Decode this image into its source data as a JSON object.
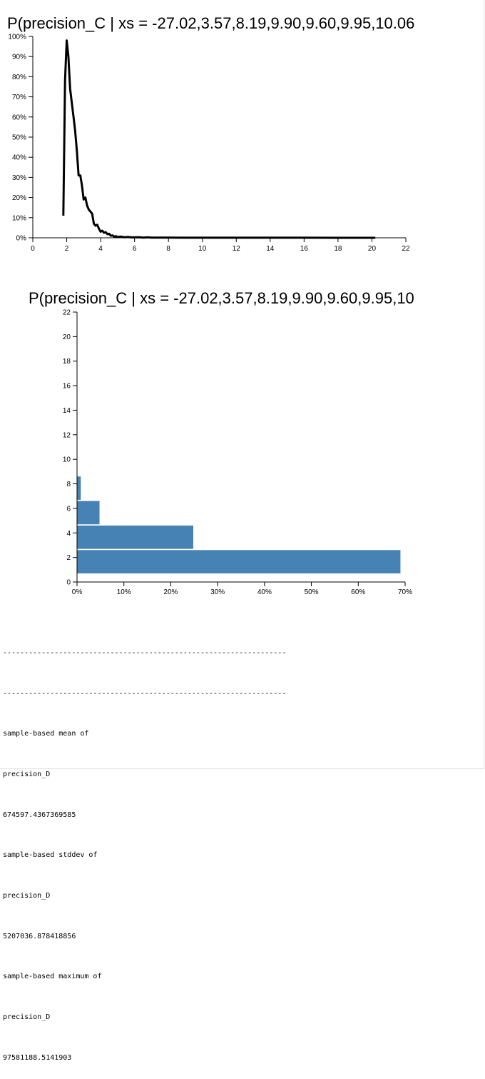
{
  "chart_data": [
    {
      "type": "line",
      "title": "P(precision_C | xs = -27.02,3.57,8.19,9.90,9.60,9.95,10.06",
      "xlim": [
        0,
        22
      ],
      "ylim": [
        0,
        1
      ],
      "x_ticks": [
        "0",
        "2",
        "4",
        "6",
        "8",
        "10",
        "12",
        "14",
        "16",
        "18",
        "20",
        "22"
      ],
      "y_ticks": [
        "0%",
        "10%",
        "20%",
        "30%",
        "40%",
        "50%",
        "60%",
        "70%",
        "80%",
        "90%",
        "100%"
      ],
      "series": [
        {
          "x": [
            1.8,
            1.9,
            2.0,
            2.1,
            2.2,
            2.3,
            2.4,
            2.5,
            2.6,
            2.7,
            2.8,
            2.9,
            3.0,
            3.1,
            3.2,
            3.3,
            3.4,
            3.5,
            3.6,
            3.7,
            3.8,
            3.9,
            4.0,
            4.1,
            4.2,
            4.3,
            4.4,
            4.5,
            4.6,
            4.7,
            4.8,
            4.9,
            5.0,
            5.2,
            5.4,
            5.6,
            5.8,
            6.0,
            6.3,
            6.5,
            6.8,
            7.0,
            7.5,
            8.0,
            9.0,
            10.0,
            12.0,
            14.0,
            16.0,
            18.0,
            20.2
          ],
          "y": [
            0.11,
            0.78,
            0.98,
            0.9,
            0.74,
            0.67,
            0.6,
            0.53,
            0.43,
            0.31,
            0.31,
            0.26,
            0.19,
            0.2,
            0.16,
            0.14,
            0.13,
            0.12,
            0.07,
            0.06,
            0.065,
            0.045,
            0.03,
            0.035,
            0.025,
            0.028,
            0.018,
            0.02,
            0.01,
            0.012,
            0.006,
            0.008,
            0.004,
            0.006,
            0.003,
            0.004,
            0.002,
            0.002,
            0.003,
            0.001,
            0.002,
            0.001,
            0.001,
            0.001,
            0.0005,
            0.0005,
            0.0003,
            0.0002,
            0.0002,
            0.0001,
            0.0001
          ]
        }
      ]
    },
    {
      "type": "bar",
      "orientation": "horizontal",
      "title": "P(precision_C | xs = -27.02,3.57,8.19,9.90,9.60,9.95,10",
      "xlim": [
        0,
        0.7
      ],
      "ylim": [
        0,
        22
      ],
      "x_ticks": [
        "0%",
        "10%",
        "20%",
        "30%",
        "40%",
        "50%",
        "60%",
        "70%"
      ],
      "y_ticks": [
        "0",
        "2",
        "4",
        "6",
        "8",
        "10",
        "12",
        "14",
        "16",
        "18",
        "20",
        "22"
      ],
      "bars": [
        {
          "y0": 0.7,
          "y1": 2.6,
          "value": 0.69
        },
        {
          "y0": 2.7,
          "y1": 4.6,
          "value": 0.248
        },
        {
          "y0": 4.7,
          "y1": 6.6,
          "value": 0.048
        },
        {
          "y0": 6.7,
          "y1": 8.6,
          "value": 0.008
        }
      ],
      "bar_color": "#4682b4"
    }
  ],
  "output": {
    "separator_1": "------------------------------------------------------------------",
    "separator_2": "------------------------------------------------------------------",
    "mean_label": "sample-based mean of",
    "mean_var": "precision_D",
    "mean_value": "674597.4367369585",
    "stddev_label": "sample-based stddev of",
    "stddev_var": "precision_D",
    "stddev_value": "5207036.878418856",
    "max_label": "sample-based maximum of",
    "max_var": "precision_D",
    "max_value": "97581188.5141903"
  }
}
